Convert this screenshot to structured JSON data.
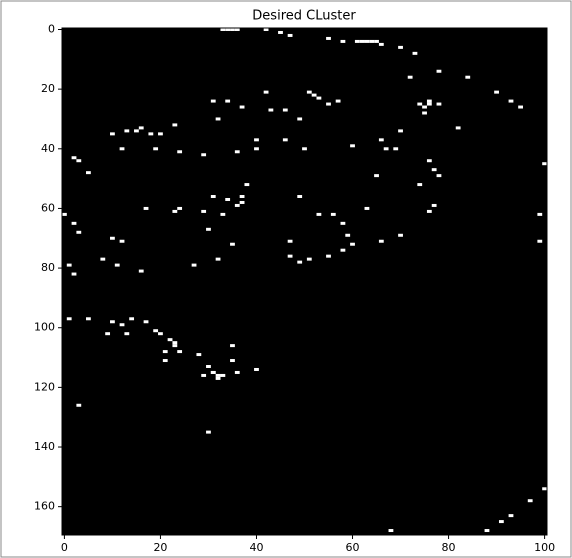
{
  "chart_data": {
    "type": "image",
    "title": "Desired CLuster",
    "background": "#000000",
    "color": "#ffffff",
    "xlim": [
      -0.5,
      100.5
    ],
    "ylim": [
      169.5,
      -0.5
    ],
    "xticks": [
      0,
      20,
      40,
      60,
      80,
      100
    ],
    "yticks": [
      0,
      20,
      40,
      60,
      80,
      100,
      120,
      140,
      160
    ],
    "x": [
      33,
      34,
      35,
      36,
      42,
      45,
      47,
      55,
      58,
      61,
      62,
      63,
      64,
      65,
      66,
      70,
      73,
      78,
      84,
      90,
      93,
      95,
      100,
      99,
      99,
      100,
      97,
      93,
      91,
      88,
      68,
      34,
      31,
      37,
      42,
      43,
      46,
      51,
      52,
      53,
      55,
      57,
      32,
      10,
      13,
      15,
      16,
      18,
      20,
      23,
      12,
      19,
      24,
      29,
      2,
      3,
      5,
      40,
      40,
      36,
      46,
      49,
      50,
      72,
      74,
      76,
      78,
      75,
      82,
      70,
      66,
      67,
      69,
      76,
      77,
      78,
      74,
      65,
      60,
      75,
      76,
      34,
      37,
      36,
      31,
      38,
      33,
      29,
      23,
      17,
      24,
      30,
      35,
      32,
      27,
      49,
      53,
      56,
      58,
      59,
      60,
      58,
      55,
      51,
      49,
      47,
      47,
      63,
      66,
      70,
      77,
      76,
      37,
      0,
      2,
      3,
      1,
      2,
      10,
      12,
      8,
      11,
      16,
      1,
      5,
      10,
      12,
      14,
      17,
      19,
      9,
      13,
      20,
      22,
      23,
      21,
      24,
      21,
      28,
      30,
      31,
      29,
      33,
      35,
      36,
      40,
      35,
      3,
      30,
      23,
      32,
      32,
      31
    ],
    "y": [
      0,
      0,
      0,
      0,
      0,
      1,
      2,
      3,
      4,
      4,
      4,
      4,
      4,
      4,
      5,
      6,
      8,
      14,
      16,
      21,
      24,
      26,
      45,
      62,
      71,
      154,
      158,
      163,
      165,
      168,
      168,
      24,
      24,
      26,
      21,
      27,
      27,
      21,
      22,
      23,
      25,
      24,
      30,
      35,
      34,
      34,
      33,
      35,
      35,
      32,
      40,
      40,
      41,
      42,
      43,
      44,
      48,
      37,
      40,
      41,
      37,
      30,
      40,
      16,
      25,
      25,
      25,
      28,
      33,
      34,
      37,
      40,
      40,
      44,
      47,
      49,
      52,
      49,
      39,
      26,
      24,
      57,
      56,
      59,
      56,
      52,
      62,
      61,
      61,
      60,
      60,
      67,
      72,
      77,
      79,
      56,
      62,
      62,
      65,
      69,
      72,
      74,
      76,
      77,
      78,
      71,
      76,
      60,
      71,
      69,
      59,
      61,
      58,
      62,
      65,
      68,
      79,
      82,
      70,
      71,
      77,
      79,
      81,
      97,
      97,
      98,
      99,
      97,
      98,
      101,
      102,
      102,
      102,
      104,
      106,
      108,
      108,
      111,
      109,
      113,
      115,
      116,
      116,
      106,
      115,
      114,
      111,
      126,
      135,
      105,
      116,
      117,
      115
    ]
  }
}
